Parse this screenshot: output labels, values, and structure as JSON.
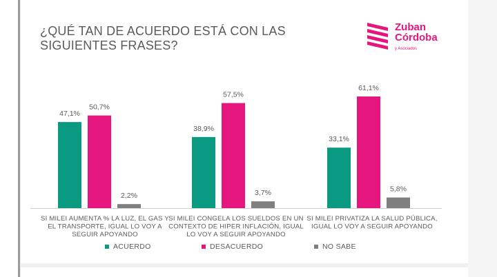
{
  "header": {
    "title": "¿QUÉ TAN DE ACUERDO ESTÁ CON LAS SIGUIENTES FRASES?"
  },
  "logo": {
    "name_line1": "Zuban",
    "name_line2": "Córdoba",
    "sub": "y Asociados",
    "color": "#e5177e"
  },
  "chart_data": {
    "type": "bar",
    "title": "¿QUÉ TAN DE ACUERDO ESTÁ CON LAS SIGUIENTES FRASES?",
    "xlabel": "",
    "ylabel": "",
    "ylim": [
      0,
      65
    ],
    "grid": false,
    "legend_position": "bottom",
    "categories": [
      "SI MILEI AUMENTA % LA LUZ, EL GAS Y EL TRANSPORTE, IGUAL LO VOY A SEGUIR APOYANDO",
      "SI MILEI CONGELA LOS SUELDOS EN UN CONTEXTO DE HIPER INFLACIÓN, IGUAL LO VOY A SEGUIR APOYANDO",
      "SI MILEI PRIVATIZA LA SALUD PÚBLICA, IGUAL LO VOY A SEGUIR APOYANDO"
    ],
    "category_lines": [
      [
        "SI MILEI AUMENTA % LA LUZ, EL GAS Y",
        "EL TRANSPORTE, IGUAL LO VOY A",
        "SEGUIR APOYANDO"
      ],
      [
        "SI MILEI CONGELA LOS SUELDOS EN UN",
        "CONTEXTO DE HIPER INFLACIÓN, IGUAL",
        "LO VOY A SEGUIR APOYANDO"
      ],
      [
        "SI MILEI PRIVATIZA LA SALUD PÚBLICA,",
        "IGUAL LO VOY A SEGUIR APOYANDO"
      ]
    ],
    "series": [
      {
        "name": "ACUERDO",
        "color": "#0a9a82",
        "values": [
          47.1,
          38.9,
          33.1
        ],
        "labels": [
          "47,1%",
          "38,9%",
          "33,1%"
        ]
      },
      {
        "name": "DESACUERDO",
        "color": "#e5177e",
        "values": [
          50.7,
          57.5,
          61.1
        ],
        "labels": [
          "50,7%",
          "57,5%",
          "61,1%"
        ]
      },
      {
        "name": "NO SABE",
        "color": "#7f7f7f",
        "values": [
          2.2,
          3.7,
          5.8
        ],
        "labels": [
          "2,2%",
          "3,7%",
          "5,8%"
        ]
      }
    ]
  }
}
